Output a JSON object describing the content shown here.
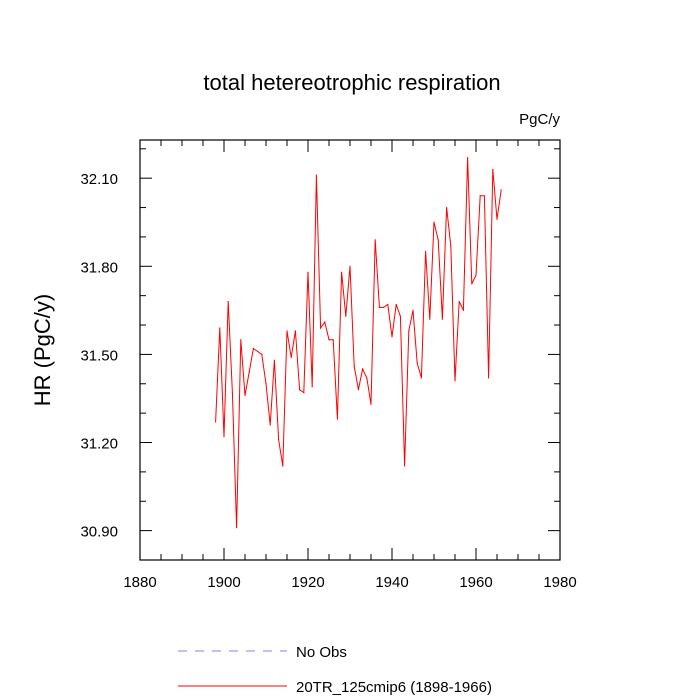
{
  "chart_data": {
    "type": "line",
    "title": "total hetereotrophic respiration",
    "units_label": "PgC/y",
    "xlabel": "",
    "ylabel": "HR  (PgC/y)",
    "xlim": [
      1880,
      1980
    ],
    "ylim": [
      30.8,
      32.23
    ],
    "x_ticks": [
      1880,
      1900,
      1920,
      1940,
      1960,
      1980
    ],
    "x_tick_labels": [
      "1880",
      "1900",
      "1920",
      "1940",
      "1960",
      "1980"
    ],
    "y_ticks": [
      30.9,
      31.2,
      31.5,
      31.8,
      32.1
    ],
    "y_tick_labels": [
      "30.90",
      "31.20",
      "31.50",
      "31.80",
      "32.10"
    ],
    "series": [
      {
        "name": "20TR_125cmip6 (1898-1966)",
        "color": "#ff0000",
        "dash": "solid",
        "x": [
          1898,
          1899,
          1900,
          1901,
          1902,
          1903,
          1904,
          1905,
          1906,
          1907,
          1908,
          1909,
          1910,
          1911,
          1912,
          1913,
          1914,
          1915,
          1916,
          1917,
          1918,
          1919,
          1920,
          1921,
          1922,
          1923,
          1924,
          1925,
          1926,
          1927,
          1928,
          1929,
          1930,
          1931,
          1932,
          1933,
          1934,
          1935,
          1936,
          1937,
          1938,
          1939,
          1940,
          1941,
          1942,
          1943,
          1944,
          1945,
          1946,
          1947,
          1948,
          1949,
          1950,
          1951,
          1952,
          1953,
          1954,
          1955,
          1956,
          1957,
          1958,
          1959,
          1960,
          1961,
          1962,
          1963,
          1964,
          1965,
          1966
        ],
        "y": [
          31.27,
          31.59,
          31.22,
          31.68,
          31.37,
          30.91,
          31.55,
          31.36,
          31.44,
          31.52,
          31.51,
          31.5,
          31.4,
          31.26,
          31.48,
          31.21,
          31.12,
          31.58,
          31.49,
          31.58,
          31.38,
          31.37,
          31.78,
          31.39,
          32.11,
          31.59,
          31.61,
          31.55,
          31.55,
          31.28,
          31.78,
          31.63,
          31.8,
          31.46,
          31.38,
          31.45,
          31.42,
          31.33,
          31.89,
          31.66,
          31.66,
          31.67,
          31.56,
          31.67,
          31.63,
          31.12,
          31.58,
          31.65,
          31.47,
          31.42,
          31.85,
          31.62,
          31.95,
          31.89,
          31.62,
          32.0,
          31.87,
          31.41,
          31.68,
          31.65,
          32.17,
          31.74,
          31.77,
          32.04,
          32.04,
          31.42,
          32.13,
          31.96,
          32.06
        ]
      },
      {
        "name": "No Obs",
        "color": "#8080ff",
        "dash": "dashed",
        "x": [],
        "y": []
      }
    ],
    "legend_position": "bottom-left"
  }
}
